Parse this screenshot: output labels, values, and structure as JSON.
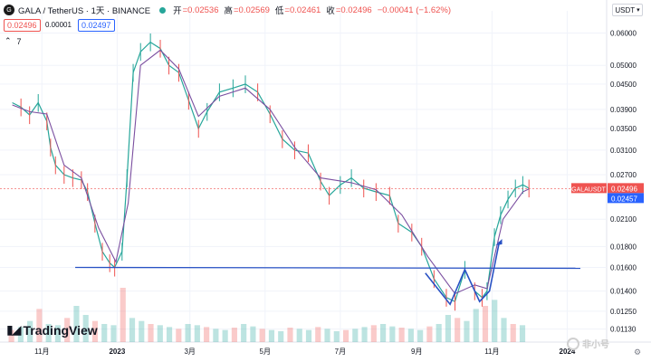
{
  "header": {
    "coin_icon": "gala-coin-icon",
    "title": "GALA / TetherUS · 1天 · BINANCE",
    "open_label": "开",
    "open_value": "=0.02536",
    "high_label": "高",
    "high_value": "=0.02569",
    "low_label": "低",
    "low_value": "=0.02461",
    "close_label": "收",
    "close_value": "=0.02496",
    "change": "−0.00041 (−1.62%)"
  },
  "quote": {
    "sell": "0.02496",
    "spread": "0.00001",
    "buy": "0.02497"
  },
  "indicators": {
    "collapse_icon": "chevron-up-icon",
    "count": "7"
  },
  "currency_button": "USDT",
  "brand": "TradingView",
  "watermark": "非小号",
  "colors": {
    "up": "#26a69a",
    "down": "#ef5350",
    "ma": "#7b4fa0",
    "trendline": "#2952c4",
    "last_price": "#ef5350",
    "blue_tag": "#2962ff"
  },
  "chart_data": {
    "type": "line",
    "title": "GALA / TetherUS · 1天 · BINANCE",
    "xlabel": "",
    "ylabel": "",
    "x_ticks": [
      "11月",
      "2023",
      "3月",
      "5月",
      "7月",
      "9月",
      "11月",
      "2024"
    ],
    "y_ticks": [
      "0.06000",
      "0.05000",
      "0.04500",
      "0.03900",
      "0.03500",
      "0.03100",
      "0.02700",
      "0.02100",
      "0.01800",
      "0.01600",
      "0.01400",
      "0.01250",
      "0.01130"
    ],
    "ylim": [
      0.0105,
      0.068
    ],
    "y_scale": "log",
    "series": [
      {
        "values": [
          [
            "2022-10-08",
            0.0405
          ],
          [
            "2022-10-15",
            0.0395
          ],
          [
            "2022-10-22",
            0.0378
          ],
          [
            "2022-10-29",
            0.0405
          ],
          [
            "2022-11-05",
            0.0365
          ],
          [
            "2022-11-08",
            0.0315
          ],
          [
            "2022-11-12",
            0.0285
          ],
          [
            "2022-11-19",
            0.027
          ],
          [
            "2022-11-26",
            0.0265
          ],
          [
            "2022-12-03",
            0.0262
          ],
          [
            "2022-12-08",
            0.0245
          ],
          [
            "2022-12-14",
            0.0205
          ],
          [
            "2022-12-20",
            0.0175
          ],
          [
            "2022-12-26",
            0.0164
          ],
          [
            "2022-12-30",
            0.016
          ],
          [
            "2023-01-05",
            0.0175
          ],
          [
            "2023-01-09",
            0.0265
          ],
          [
            "2023-01-14",
            0.048
          ],
          [
            "2023-01-20",
            0.054
          ],
          [
            "2023-01-28",
            0.057
          ],
          [
            "2023-02-05",
            0.055
          ],
          [
            "2023-02-12",
            0.05
          ],
          [
            "2023-02-20",
            0.048
          ],
          [
            "2023-02-28",
            0.041
          ],
          [
            "2023-03-08",
            0.035
          ],
          [
            "2023-03-15",
            0.0385
          ],
          [
            "2023-03-25",
            0.043
          ],
          [
            "2023-04-05",
            0.044
          ],
          [
            "2023-04-15",
            0.045
          ],
          [
            "2023-04-25",
            0.043
          ],
          [
            "2023-05-05",
            0.038
          ],
          [
            "2023-05-15",
            0.033
          ],
          [
            "2023-05-25",
            0.031
          ],
          [
            "2023-06-05",
            0.0305
          ],
          [
            "2023-06-15",
            0.026
          ],
          [
            "2023-06-22",
            0.024
          ],
          [
            "2023-07-01",
            0.0255
          ],
          [
            "2023-07-10",
            0.0265
          ],
          [
            "2023-07-20",
            0.025
          ],
          [
            "2023-07-30",
            0.0245
          ],
          [
            "2023-08-10",
            0.024
          ],
          [
            "2023-08-17",
            0.0205
          ],
          [
            "2023-08-28",
            0.0195
          ],
          [
            "2023-09-05",
            0.018
          ],
          [
            "2023-09-15",
            0.015
          ],
          [
            "2023-09-25",
            0.0135
          ],
          [
            "2023-10-02",
            0.0132
          ],
          [
            "2023-10-10",
            0.0158
          ],
          [
            "2023-10-18",
            0.014
          ],
          [
            "2023-10-24",
            0.0135
          ],
          [
            "2023-10-28",
            0.014
          ],
          [
            "2023-11-03",
            0.019
          ],
          [
            "2023-11-08",
            0.0215
          ],
          [
            "2023-11-14",
            0.0235
          ],
          [
            "2023-11-20",
            0.025
          ],
          [
            "2023-11-26",
            0.0255
          ],
          [
            "2023-12-01",
            0.025
          ]
        ]
      },
      {
        "values": [
          [
            "2022-10-08",
            0.04
          ],
          [
            "2022-10-22",
            0.0385
          ],
          [
            "2022-11-05",
            0.038
          ],
          [
            "2022-11-19",
            0.0285
          ],
          [
            "2022-12-03",
            0.0265
          ],
          [
            "2022-12-17",
            0.02
          ],
          [
            "2022-12-31",
            0.0165
          ],
          [
            "2023-01-10",
            0.023
          ],
          [
            "2023-01-20",
            0.05
          ],
          [
            "2023-02-05",
            0.0545
          ],
          [
            "2023-02-20",
            0.049
          ],
          [
            "2023-03-08",
            0.0375
          ],
          [
            "2023-03-25",
            0.042
          ],
          [
            "2023-04-15",
            0.044
          ],
          [
            "2023-05-05",
            0.039
          ],
          [
            "2023-05-25",
            0.0315
          ],
          [
            "2023-06-15",
            0.0265
          ],
          [
            "2023-07-10",
            0.0258
          ],
          [
            "2023-07-30",
            0.0248
          ],
          [
            "2023-08-20",
            0.0215
          ],
          [
            "2023-09-10",
            0.017
          ],
          [
            "2023-10-02",
            0.0138
          ],
          [
            "2023-10-18",
            0.0145
          ],
          [
            "2023-10-28",
            0.0142
          ],
          [
            "2023-11-10",
            0.021
          ],
          [
            "2023-11-26",
            0.0245
          ],
          [
            "2023-12-01",
            0.0249
          ]
        ]
      }
    ],
    "horizontal_line": {
      "y": 0.016
    },
    "annotation_path": [
      [
        "2023-09-08",
        0.0155
      ],
      [
        "2023-09-28",
        0.013
      ],
      [
        "2023-10-10",
        0.0158
      ],
      [
        "2023-10-22",
        0.0132
      ],
      [
        "2023-10-30",
        0.014
      ],
      [
        "2023-11-07",
        0.0185
      ]
    ],
    "last_price": {
      "label": "GALAUSDT",
      "value": "0.02496"
    },
    "secondary_price": {
      "value": "0.02457"
    },
    "volume": [
      20,
      25,
      35,
      55,
      30,
      28,
      40,
      60,
      45,
      35,
      30,
      28,
      90,
      40,
      35,
      30,
      28,
      25,
      22,
      30,
      28,
      25,
      22,
      20,
      24,
      30,
      26,
      22,
      20,
      18,
      24,
      22,
      20,
      25,
      22,
      18,
      20,
      22,
      25,
      28,
      30,
      26,
      24,
      22,
      20,
      26,
      30,
      45,
      40,
      35,
      55,
      60,
      70,
      40,
      30,
      28
    ]
  }
}
